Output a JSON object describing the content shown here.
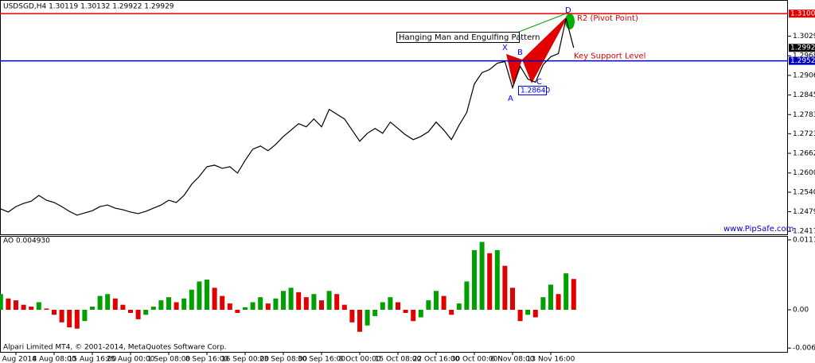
{
  "header": "USDSGD,H4  1.30119 1.30132 1.29922 1.29929",
  "footer": "Alpari Limited MT4, © 2001-2014, MetaQuotes Software Corp.",
  "watermark": "www.PipSafe.com",
  "annotations": {
    "pattern": "Hanging Man and Engulfing Pattern",
    "low_price": "1.28640",
    "X": "X",
    "A": "A",
    "B": "B",
    "C": "C",
    "D": "D"
  },
  "chart_data": [
    {
      "type": "line",
      "color": "#000000",
      "categories": [
        null,
        null,
        "1 Aug 2014",
        null,
        null,
        null,
        null,
        "8 Aug 08:00",
        null,
        null,
        null,
        null,
        "15 Aug 16:00",
        null,
        null,
        null,
        null,
        "25 Aug 00:00",
        null,
        null,
        null,
        null,
        "1 Sep 08:00",
        null,
        null,
        null,
        null,
        "8 Sep 16:00",
        null,
        null,
        null,
        null,
        "16 Sep 00:00",
        null,
        null,
        null,
        null,
        "23 Sep 08:00",
        null,
        null,
        null,
        null,
        "30 Sep 16:00",
        null,
        null,
        null,
        null,
        "8 Oct 00:00",
        null,
        null,
        null,
        null,
        "15 Oct 08:00",
        null,
        null,
        null,
        null,
        "22 Oct 16:00",
        null,
        null,
        null,
        null,
        "30 Oct 00:00",
        null,
        null,
        null,
        null,
        "6 Nov 08:00",
        null,
        null,
        null,
        null,
        "13 Nov 16:00",
        null,
        null,
        null
      ],
      "values": [
        1.2488,
        1.2478,
        1.2495,
        1.2505,
        1.2512,
        1.253,
        1.2515,
        1.2508,
        1.2495,
        1.248,
        1.2468,
        1.2475,
        1.2482,
        1.2495,
        1.25,
        1.249,
        1.2485,
        1.2478,
        1.2473,
        1.248,
        1.249,
        1.25,
        1.2515,
        1.2508,
        1.253,
        1.2565,
        1.259,
        1.262,
        1.2625,
        1.2615,
        1.262,
        1.26,
        1.264,
        1.2675,
        1.2685,
        1.267,
        1.269,
        1.2715,
        1.2735,
        1.2755,
        1.2745,
        1.277,
        1.2745,
        1.28,
        1.2785,
        1.277,
        1.2735,
        1.27,
        1.2725,
        1.274,
        1.2725,
        1.276,
        1.274,
        1.272,
        1.2705,
        1.2715,
        1.273,
        1.276,
        1.2735,
        1.2705,
        1.275,
        1.279,
        1.288,
        1.2915,
        1.2925,
        1.2945,
        1.295,
        1.2868,
        1.2935,
        1.2895,
        1.2885,
        1.294,
        1.2965,
        1.2975,
        1.3085,
        1.2993
      ],
      "ylim": [
        1.2408,
        1.3143
      ],
      "yticks": [
        1.30295,
        {
          "value": 1.2968,
          "label": "1.29680"
        },
        1.29065,
        {
          "value": 1.2845,
          "label": "1.28450"
        },
        1.27835,
        1.27235,
        {
          "value": 1.2662,
          "label": "1.26620"
        },
        1.26005,
        {
          "value": 1.254,
          "label": "1.25400"
        },
        {
          "value": 1.2479,
          "label": "1.24790"
        },
        1.24175
      ],
      "levels": [
        {
          "name": "R2 (Pivot Point)",
          "value": 1.31003,
          "color": "#e00000",
          "label_color": "#e00000"
        },
        {
          "name": "Key Support Level",
          "value": 1.29521,
          "color": "#0000c0",
          "label_color": "#e00000"
        }
      ],
      "current_price": 1.29929
    },
    {
      "type": "bar",
      "title": "AO 0.004930",
      "up_color": "#00a000",
      "down_color": "#e00000",
      "values": [
        0.0025,
        0.0018,
        0.0015,
        0.0008,
        0.0005,
        0.0012,
        0.0002,
        -0.0008,
        -0.002,
        -0.0028,
        -0.003,
        -0.0018,
        0.0005,
        0.0022,
        0.0025,
        0.0018,
        0.0008,
        -0.0005,
        -0.0015,
        -0.0008,
        0.0005,
        0.0015,
        0.002,
        0.0012,
        0.0018,
        0.0032,
        0.0045,
        0.0048,
        0.0035,
        0.0022,
        0.001,
        -0.0005,
        0.0004,
        0.0012,
        0.002,
        0.001,
        0.0018,
        0.003,
        0.0035,
        0.0028,
        0.002,
        0.0025,
        0.0015,
        0.003,
        0.0025,
        0.0008,
        -0.002,
        -0.0035,
        -0.0025,
        -0.001,
        0.0012,
        0.002,
        0.0012,
        -0.0005,
        -0.0018,
        -0.0012,
        0.0015,
        0.003,
        0.0022,
        -0.0008,
        0.001,
        0.0045,
        0.0095,
        0.0108,
        0.009,
        0.0095,
        0.007,
        0.0035,
        -0.0018,
        -0.0008,
        -0.0012,
        0.002,
        0.004,
        0.0025,
        0.0058,
        0.0049
      ],
      "ylim": [
        -0.0067,
        0.01163
      ],
      "yticks": [
        0.011127,
        {
          "value": 0,
          "label": "0.00"
        },
        -0.006092
      ]
    }
  ]
}
